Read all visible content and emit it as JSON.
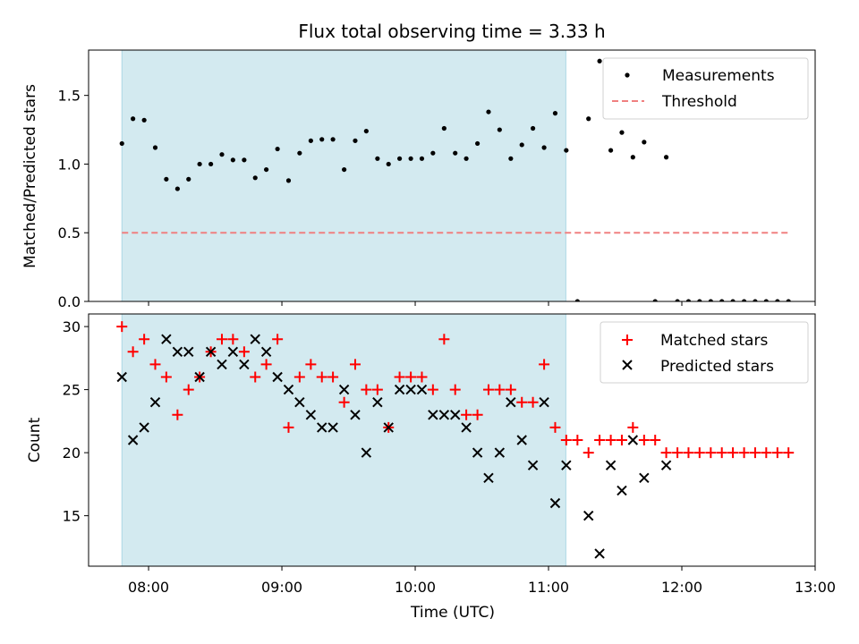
{
  "chart_data": [
    {
      "type": "scatter",
      "title": "Flux total observing time = 3.33 h",
      "xlabel": "",
      "ylabel": "Matched/Predicted stars",
      "xlim_hours": [
        7.55,
        13.0
      ],
      "ylim": [
        0,
        1.83
      ],
      "yticks": [
        0.0,
        0.5,
        1.0,
        1.5
      ],
      "ytick_labels": [
        "0.0",
        "0.5",
        "1.0",
        "1.5"
      ],
      "observing_window_hours": [
        7.8,
        11.13
      ],
      "observing_window_color": "#d3eaf0",
      "legend_position": "top-right",
      "series": [
        {
          "name": "Measurements",
          "marker": "dot",
          "color": "#000000",
          "x": [
            7.8,
            7.883,
            7.967,
            8.05,
            8.133,
            8.217,
            8.3,
            8.383,
            8.467,
            8.55,
            8.633,
            8.717,
            8.8,
            8.883,
            8.967,
            9.05,
            9.133,
            9.217,
            9.3,
            9.383,
            9.467,
            9.55,
            9.633,
            9.717,
            9.8,
            9.883,
            9.967,
            10.05,
            10.133,
            10.217,
            10.3,
            10.383,
            10.467,
            10.55,
            10.633,
            10.717,
            10.8,
            10.883,
            10.967,
            11.05,
            11.133,
            11.217,
            11.3,
            11.383,
            11.467,
            11.55,
            11.633,
            11.717,
            11.8,
            11.883,
            11.967,
            12.05,
            12.133,
            12.217,
            12.3,
            12.383,
            12.467,
            12.55,
            12.633,
            12.717,
            12.8
          ],
          "values": [
            1.15,
            1.33,
            1.32,
            1.12,
            0.89,
            0.82,
            0.89,
            1.0,
            1.0,
            1.07,
            1.03,
            1.03,
            0.9,
            0.96,
            1.11,
            0.88,
            1.08,
            1.17,
            1.18,
            1.18,
            0.96,
            1.17,
            1.24,
            1.04,
            1.0,
            1.04,
            1.04,
            1.04,
            1.08,
            1.26,
            1.08,
            1.04,
            1.15,
            1.38,
            1.25,
            1.04,
            1.14,
            1.26,
            1.12,
            1.37,
            1.1,
            0.0,
            1.33,
            1.75,
            1.1,
            1.23,
            1.05,
            1.16,
            0.0,
            1.05,
            0.0,
            0.0,
            0.0,
            0.0,
            0.0,
            0.0,
            0.0,
            0.0,
            0.0,
            0.0,
            0.0
          ]
        },
        {
          "name": "Threshold",
          "style": "dashed",
          "color": "#f08080",
          "x": [
            7.8,
            12.8
          ],
          "values": [
            0.5,
            0.5
          ]
        }
      ]
    },
    {
      "type": "scatter",
      "title": "",
      "xlabel": "Time (UTC)",
      "ylabel": "Count",
      "xlim_hours": [
        7.55,
        13.0
      ],
      "ylim": [
        11,
        31
      ],
      "yticks": [
        15,
        20,
        25,
        30
      ],
      "ytick_labels": [
        "15",
        "20",
        "25",
        "30"
      ],
      "xticks_hours": [
        8,
        9,
        10,
        11,
        12,
        13
      ],
      "xtick_labels": [
        "08:00",
        "09:00",
        "10:00",
        "11:00",
        "12:00",
        "13:00"
      ],
      "observing_window_hours": [
        7.8,
        11.13
      ],
      "observing_window_color": "#d3eaf0",
      "legend_position": "top-right",
      "series": [
        {
          "name": "Matched stars",
          "marker": "plus",
          "color": "#ff0000",
          "x": [
            7.8,
            7.883,
            7.967,
            8.05,
            8.133,
            8.217,
            8.3,
            8.383,
            8.467,
            8.55,
            8.633,
            8.717,
            8.8,
            8.883,
            8.967,
            9.05,
            9.133,
            9.217,
            9.3,
            9.383,
            9.467,
            9.55,
            9.633,
            9.717,
            9.8,
            9.883,
            9.967,
            10.05,
            10.133,
            10.217,
            10.3,
            10.383,
            10.467,
            10.55,
            10.633,
            10.717,
            10.8,
            10.883,
            10.967,
            11.05,
            11.133,
            11.217,
            11.3,
            11.383,
            11.467,
            11.55,
            11.633,
            11.717,
            11.8,
            11.883,
            11.967,
            12.05,
            12.133,
            12.217,
            12.3,
            12.383,
            12.467,
            12.55,
            12.633,
            12.717,
            12.8
          ],
          "values": [
            30,
            28,
            29,
            27,
            26,
            23,
            25,
            26,
            28,
            29,
            29,
            28,
            26,
            27,
            29,
            22,
            26,
            27,
            26,
            26,
            24,
            27,
            25,
            25,
            22,
            26,
            26,
            26,
            25,
            29,
            25,
            23,
            23,
            25,
            25,
            25,
            24,
            24,
            27,
            22,
            21,
            21,
            20,
            21,
            21,
            21,
            22,
            21,
            21,
            20,
            20,
            20,
            20,
            20,
            20,
            20,
            20,
            20,
            20,
            20,
            20
          ]
        },
        {
          "name": "Predicted stars",
          "marker": "x",
          "color": "#000000",
          "x": [
            7.8,
            7.883,
            7.967,
            8.05,
            8.133,
            8.217,
            8.3,
            8.383,
            8.467,
            8.55,
            8.633,
            8.717,
            8.8,
            8.883,
            8.967,
            9.05,
            9.133,
            9.217,
            9.3,
            9.383,
            9.467,
            9.55,
            9.633,
            9.717,
            9.8,
            9.883,
            9.967,
            10.05,
            10.133,
            10.217,
            10.3,
            10.383,
            10.467,
            10.55,
            10.633,
            10.717,
            10.8,
            10.883,
            10.967,
            11.05,
            11.133,
            11.3,
            11.383,
            11.467,
            11.55,
            11.633,
            11.717,
            11.883
          ],
          "values": [
            26,
            21,
            22,
            24,
            29,
            28,
            28,
            26,
            28,
            27,
            28,
            27,
            29,
            28,
            26,
            25,
            24,
            23,
            22,
            22,
            25,
            23,
            20,
            24,
            22,
            25,
            25,
            25,
            23,
            23,
            23,
            22,
            20,
            18,
            20,
            24,
            21,
            19,
            24,
            16,
            19,
            15,
            12,
            19,
            17,
            21,
            18,
            19
          ]
        }
      ]
    }
  ]
}
